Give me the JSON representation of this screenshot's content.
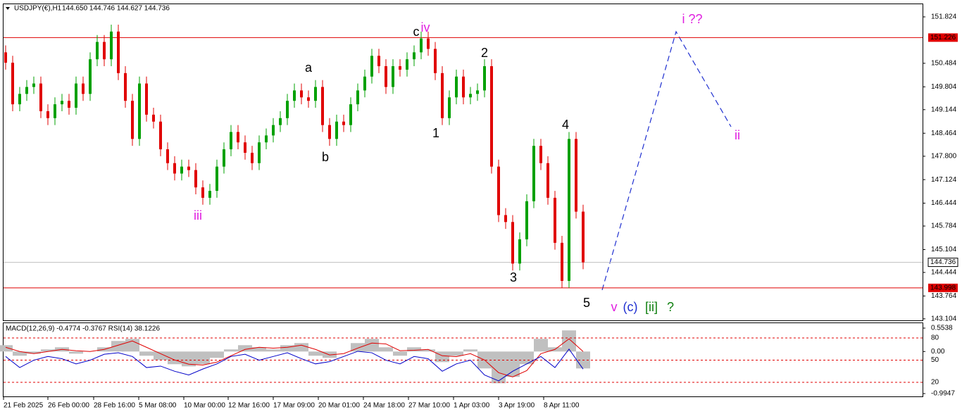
{
  "header": {
    "symbol": "USDJPY(€),H1",
    "quote": "144.650 144.746 144.627 144.736"
  },
  "chart_data": [
    {
      "type": "candlestick",
      "open": [
        150.8,
        150.5,
        149.3,
        149.6,
        149.8,
        149.9,
        149.1,
        148.9,
        149.3,
        149.4,
        149.2,
        149.9,
        149.6,
        150.6,
        151.1,
        150.6,
        151.4,
        150.2,
        149.4,
        148.3,
        149.9,
        149.0,
        148.8,
        148.0,
        147.6,
        147.3,
        147.5,
        147.4,
        146.9,
        146.6,
        146.8,
        147.5,
        148.0,
        148.5,
        148.2,
        147.9,
        147.6,
        148.2,
        148.4,
        148.7,
        148.9,
        149.4,
        149.7,
        149.5,
        149.4,
        149.8,
        148.7,
        148.3,
        148.8,
        148.7,
        149.3,
        149.7,
        150.1,
        150.7,
        150.4,
        149.8,
        150.4,
        150.3,
        150.6,
        150.8,
        151.2,
        150.9,
        150.2,
        148.9,
        149.5,
        150.1,
        149.5,
        149.6,
        149.7,
        150.4,
        147.5,
        146.1,
        145.9,
        144.7,
        145.4,
        146.5,
        148.1,
        147.6,
        146.6,
        145.3,
        144.2,
        148.3,
        146.2
      ],
      "high": [
        151.0,
        150.7,
        149.8,
        150.0,
        150.1,
        150.1,
        149.3,
        149.5,
        149.6,
        149.6,
        150.1,
        150.1,
        150.8,
        151.3,
        151.3,
        151.6,
        151.6,
        150.4,
        149.6,
        150.1,
        150.1,
        149.2,
        149.0,
        148.2,
        147.8,
        147.7,
        147.7,
        147.6,
        147.1,
        147.0,
        147.7,
        148.2,
        148.7,
        148.7,
        148.4,
        148.1,
        148.4,
        148.6,
        148.9,
        149.1,
        149.6,
        149.9,
        149.9,
        149.7,
        150.0,
        150.0,
        148.9,
        149.0,
        149.0,
        149.5,
        149.9,
        150.3,
        150.9,
        150.9,
        150.6,
        150.6,
        150.6,
        150.8,
        151.0,
        151.4,
        151.4,
        151.1,
        150.4,
        149.7,
        150.3,
        150.3,
        149.8,
        149.9,
        150.6,
        150.6,
        147.7,
        146.3,
        146.1,
        145.6,
        146.7,
        148.3,
        148.3,
        147.8,
        146.8,
        145.5,
        148.5,
        148.5,
        146.4
      ],
      "low": [
        150.3,
        149.1,
        149.1,
        149.4,
        149.6,
        148.9,
        148.7,
        148.7,
        149.1,
        149.0,
        149.0,
        149.4,
        149.4,
        150.4,
        150.4,
        150.4,
        150.0,
        149.2,
        148.1,
        148.1,
        148.8,
        148.6,
        147.8,
        147.4,
        147.1,
        147.1,
        147.2,
        146.7,
        146.4,
        146.4,
        146.6,
        147.3,
        147.8,
        148.0,
        147.7,
        147.4,
        147.4,
        148.0,
        148.2,
        148.5,
        148.7,
        149.2,
        149.3,
        149.2,
        149.2,
        148.5,
        148.1,
        148.1,
        148.5,
        148.5,
        149.1,
        149.5,
        149.9,
        150.2,
        149.6,
        149.6,
        150.1,
        150.1,
        150.4,
        150.6,
        150.7,
        150.0,
        148.7,
        148.7,
        149.3,
        149.3,
        149.3,
        149.4,
        149.5,
        147.3,
        145.9,
        145.7,
        144.5,
        144.5,
        145.2,
        146.3,
        147.4,
        146.4,
        145.1,
        144.0,
        144.0,
        146.0,
        144.536
      ],
      "close": [
        150.5,
        149.3,
        149.6,
        149.8,
        149.9,
        149.1,
        148.9,
        149.3,
        149.4,
        149.2,
        149.9,
        149.6,
        150.6,
        151.1,
        150.6,
        151.4,
        150.2,
        149.4,
        148.3,
        149.9,
        149.0,
        148.8,
        148.0,
        147.6,
        147.3,
        147.5,
        147.4,
        146.9,
        146.6,
        146.8,
        147.5,
        148.0,
        148.5,
        148.2,
        147.9,
        147.6,
        148.2,
        148.4,
        148.7,
        148.9,
        149.4,
        149.7,
        149.5,
        149.4,
        149.8,
        148.7,
        148.3,
        148.8,
        148.7,
        149.3,
        149.7,
        150.1,
        150.7,
        150.4,
        149.8,
        150.4,
        150.3,
        150.6,
        150.8,
        151.2,
        150.9,
        150.2,
        148.9,
        149.5,
        150.1,
        149.5,
        149.6,
        149.7,
        150.4,
        147.5,
        146.1,
        145.9,
        144.7,
        145.4,
        146.5,
        148.1,
        147.6,
        146.6,
        145.3,
        144.2,
        148.3,
        146.2,
        144.736
      ],
      "up_color": "#00a000",
      "down_color": "#e00000",
      "ylim": [
        143.06,
        152.21
      ],
      "yticks": [
        151.824,
        150.484,
        149.804,
        149.144,
        148.464,
        {
          "value": 147.8,
          "label": "147.800"
        },
        147.124,
        146.444,
        145.784,
        145.104,
        144.444,
        143.764,
        143.104
      ],
      "x_labels": [
        "21 Feb 2025",
        "26 Feb 00:00",
        "28 Feb 16:00",
        "5 Mar 08:00",
        "10 Mar 00:00",
        "12 Mar 16:00",
        "17 Mar 09:00",
        "20 Mar 01:00",
        "24 Mar 18:00",
        "27 Mar 10:00",
        "1 Apr 03:00",
        "3 Apr 19:00",
        "8 Apr 11:00"
      ],
      "levels": [
        {
          "value": 151.226,
          "color": "#e00000"
        },
        {
          "value": 143.998,
          "color": "#e00000"
        }
      ],
      "last_price": 144.736,
      "annotations": [
        {
          "text": "a",
          "color": "#000000"
        },
        {
          "text": "b",
          "color": "#000000"
        },
        {
          "text": "c",
          "color": "#000000"
        },
        {
          "text": "iv",
          "color": "#e020e0"
        },
        {
          "text": "1",
          "color": "#000000"
        },
        {
          "text": "2",
          "color": "#000000"
        },
        {
          "text": "3",
          "color": "#000000"
        },
        {
          "text": "4",
          "color": "#000000"
        },
        {
          "text": "5",
          "color": "#000000"
        },
        {
          "text": "iii",
          "color": "#e020e0"
        },
        {
          "text": "i ??",
          "color": "#e020e0"
        },
        {
          "text": "ii",
          "color": "#e020e0"
        },
        {
          "text": "v",
          "color": "#e020e0"
        },
        {
          "text": "(c)",
          "color": "#2030d0"
        },
        {
          "text": "[ii]",
          "color": "#108010"
        },
        {
          "text": "?",
          "color": "#108010"
        }
      ]
    },
    {
      "type": "indicator",
      "title": "MACD(12,26,9) -0.4774 -0.3767 RSI(14) 38.1226",
      "macd": {
        "color": "#c0c0c0",
        "values": [
          0.15,
          -0.1,
          -0.05,
          0.05,
          0.1,
          -0.05,
          0.0,
          0.1,
          0.25,
          0.3,
          -0.1,
          -0.2,
          -0.3,
          -0.35,
          -0.3,
          -0.15,
          0.05,
          0.15,
          0.1,
          0.05,
          0.15,
          0.2,
          -0.1,
          -0.15,
          0.0,
          0.2,
          0.3,
          0.1,
          -0.1,
          0.1,
          0.05,
          -0.25,
          -0.1,
          0.05,
          -0.4,
          -0.75,
          -0.6,
          -0.3,
          0.3,
          0.1,
          0.5,
          -0.4
        ]
      },
      "signal": {
        "color": "#e00000",
        "values": [
          0.1,
          0.0,
          -0.05,
          0.0,
          0.05,
          0.02,
          0.0,
          0.05,
          0.15,
          0.25,
          0.1,
          -0.05,
          -0.2,
          -0.3,
          -0.32,
          -0.25,
          -0.1,
          0.05,
          0.1,
          0.08,
          0.1,
          0.15,
          0.05,
          -0.08,
          -0.05,
          0.08,
          0.2,
          0.18,
          0.02,
          0.03,
          0.05,
          -0.1,
          -0.12,
          -0.05,
          -0.2,
          -0.5,
          -0.6,
          -0.45,
          -0.05,
          0.05,
          0.3,
          0.0
        ]
      },
      "rsi": {
        "color": "#0000c8",
        "values": [
          55,
          40,
          50,
          55,
          52,
          45,
          50,
          58,
          60,
          55,
          40,
          42,
          35,
          30,
          38,
          45,
          55,
          58,
          50,
          55,
          60,
          52,
          45,
          48,
          55,
          62,
          60,
          50,
          45,
          55,
          52,
          35,
          45,
          50,
          30,
          22,
          35,
          45,
          55,
          40,
          65,
          38
        ]
      },
      "macd_lim": [
        -1.061,
        0.687
      ],
      "macd_ticks": [
        0.5538,
        {
          "value": 0,
          "label": "0.00"
        },
        -0.9947
      ],
      "rsi_lim": [
        1,
        101
      ],
      "rsi_ticks": [
        80,
        50,
        20
      ],
      "level_color": "#e00000"
    }
  ]
}
